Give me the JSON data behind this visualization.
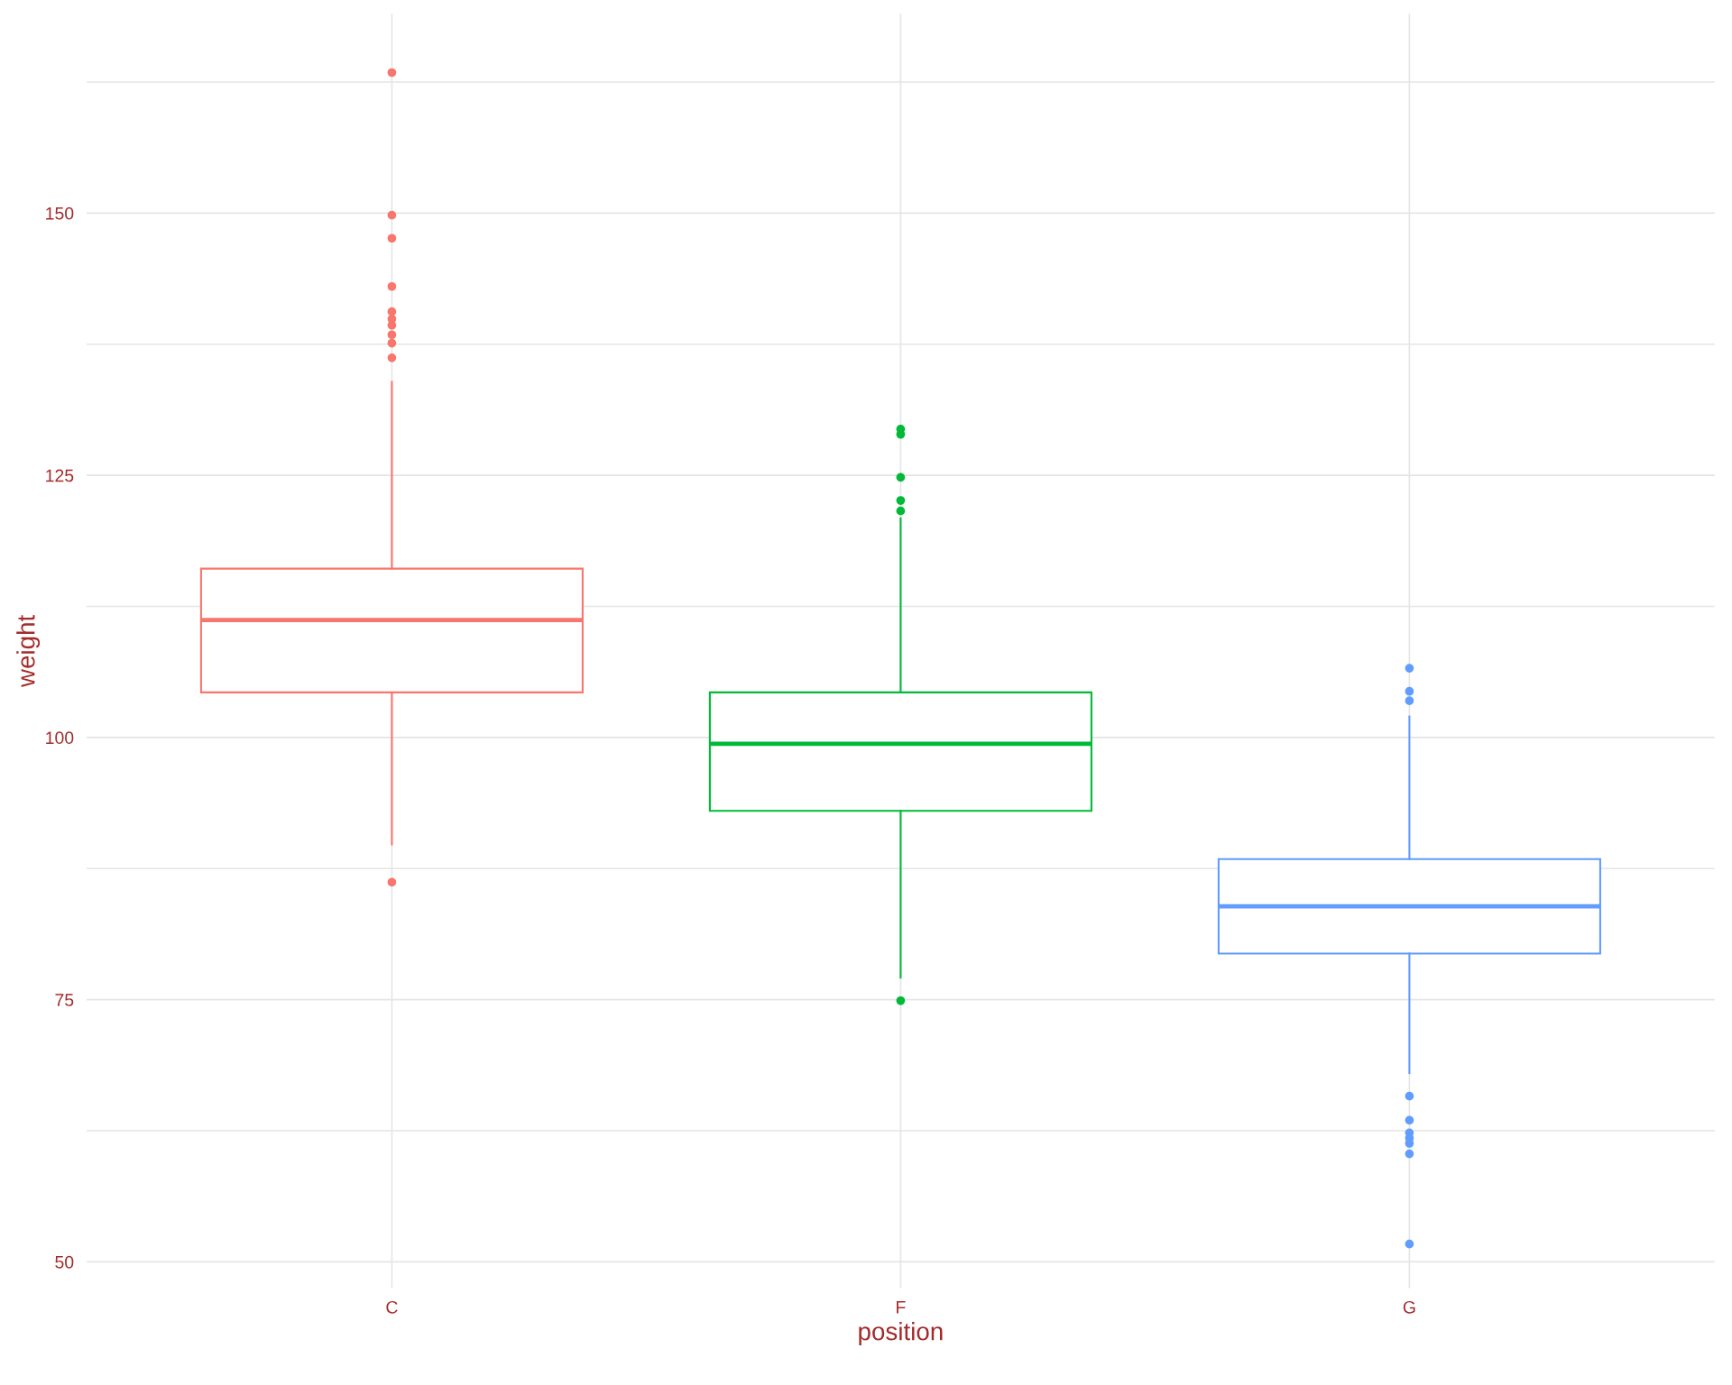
{
  "chart_data": {
    "type": "box",
    "xlabel": "position",
    "ylabel": "weight",
    "categories": [
      "C",
      "F",
      "G"
    ],
    "colors": [
      "#f8766d",
      "#00ba38",
      "#619cff"
    ],
    "boxes": [
      {
        "low": 89.8,
        "q1": 104.3,
        "median": 111.2,
        "q3": 116.1,
        "high": 133.9,
        "outliers": [
          163.4,
          149.8,
          147.6,
          143.0,
          140.6,
          139.9,
          139.3,
          138.4,
          137.6,
          136.2,
          86.2
        ]
      },
      {
        "low": 77.1,
        "q1": 93.0,
        "median": 99.4,
        "q3": 104.3,
        "high": 120.9,
        "outliers": [
          129.4,
          128.9,
          124.8,
          122.6,
          121.6,
          74.9
        ]
      },
      {
        "low": 68.0,
        "q1": 79.4,
        "median": 83.9,
        "q3": 88.4,
        "high": 102.0,
        "outliers": [
          106.6,
          104.4,
          103.5,
          65.8,
          63.5,
          62.3,
          61.8,
          61.3,
          60.3,
          51.7
        ]
      }
    ],
    "ylim": [
      47.5,
      169
    ],
    "yticks": [
      50,
      {
        "value": 62.5,
        "label": null
      },
      75,
      {
        "value": 87.5,
        "label": null
      },
      100,
      {
        "value": 112.5,
        "label": null
      },
      125,
      {
        "value": 137.5,
        "label": null
      },
      150,
      {
        "value": 162.5,
        "label": null
      }
    ],
    "grid": true
  }
}
